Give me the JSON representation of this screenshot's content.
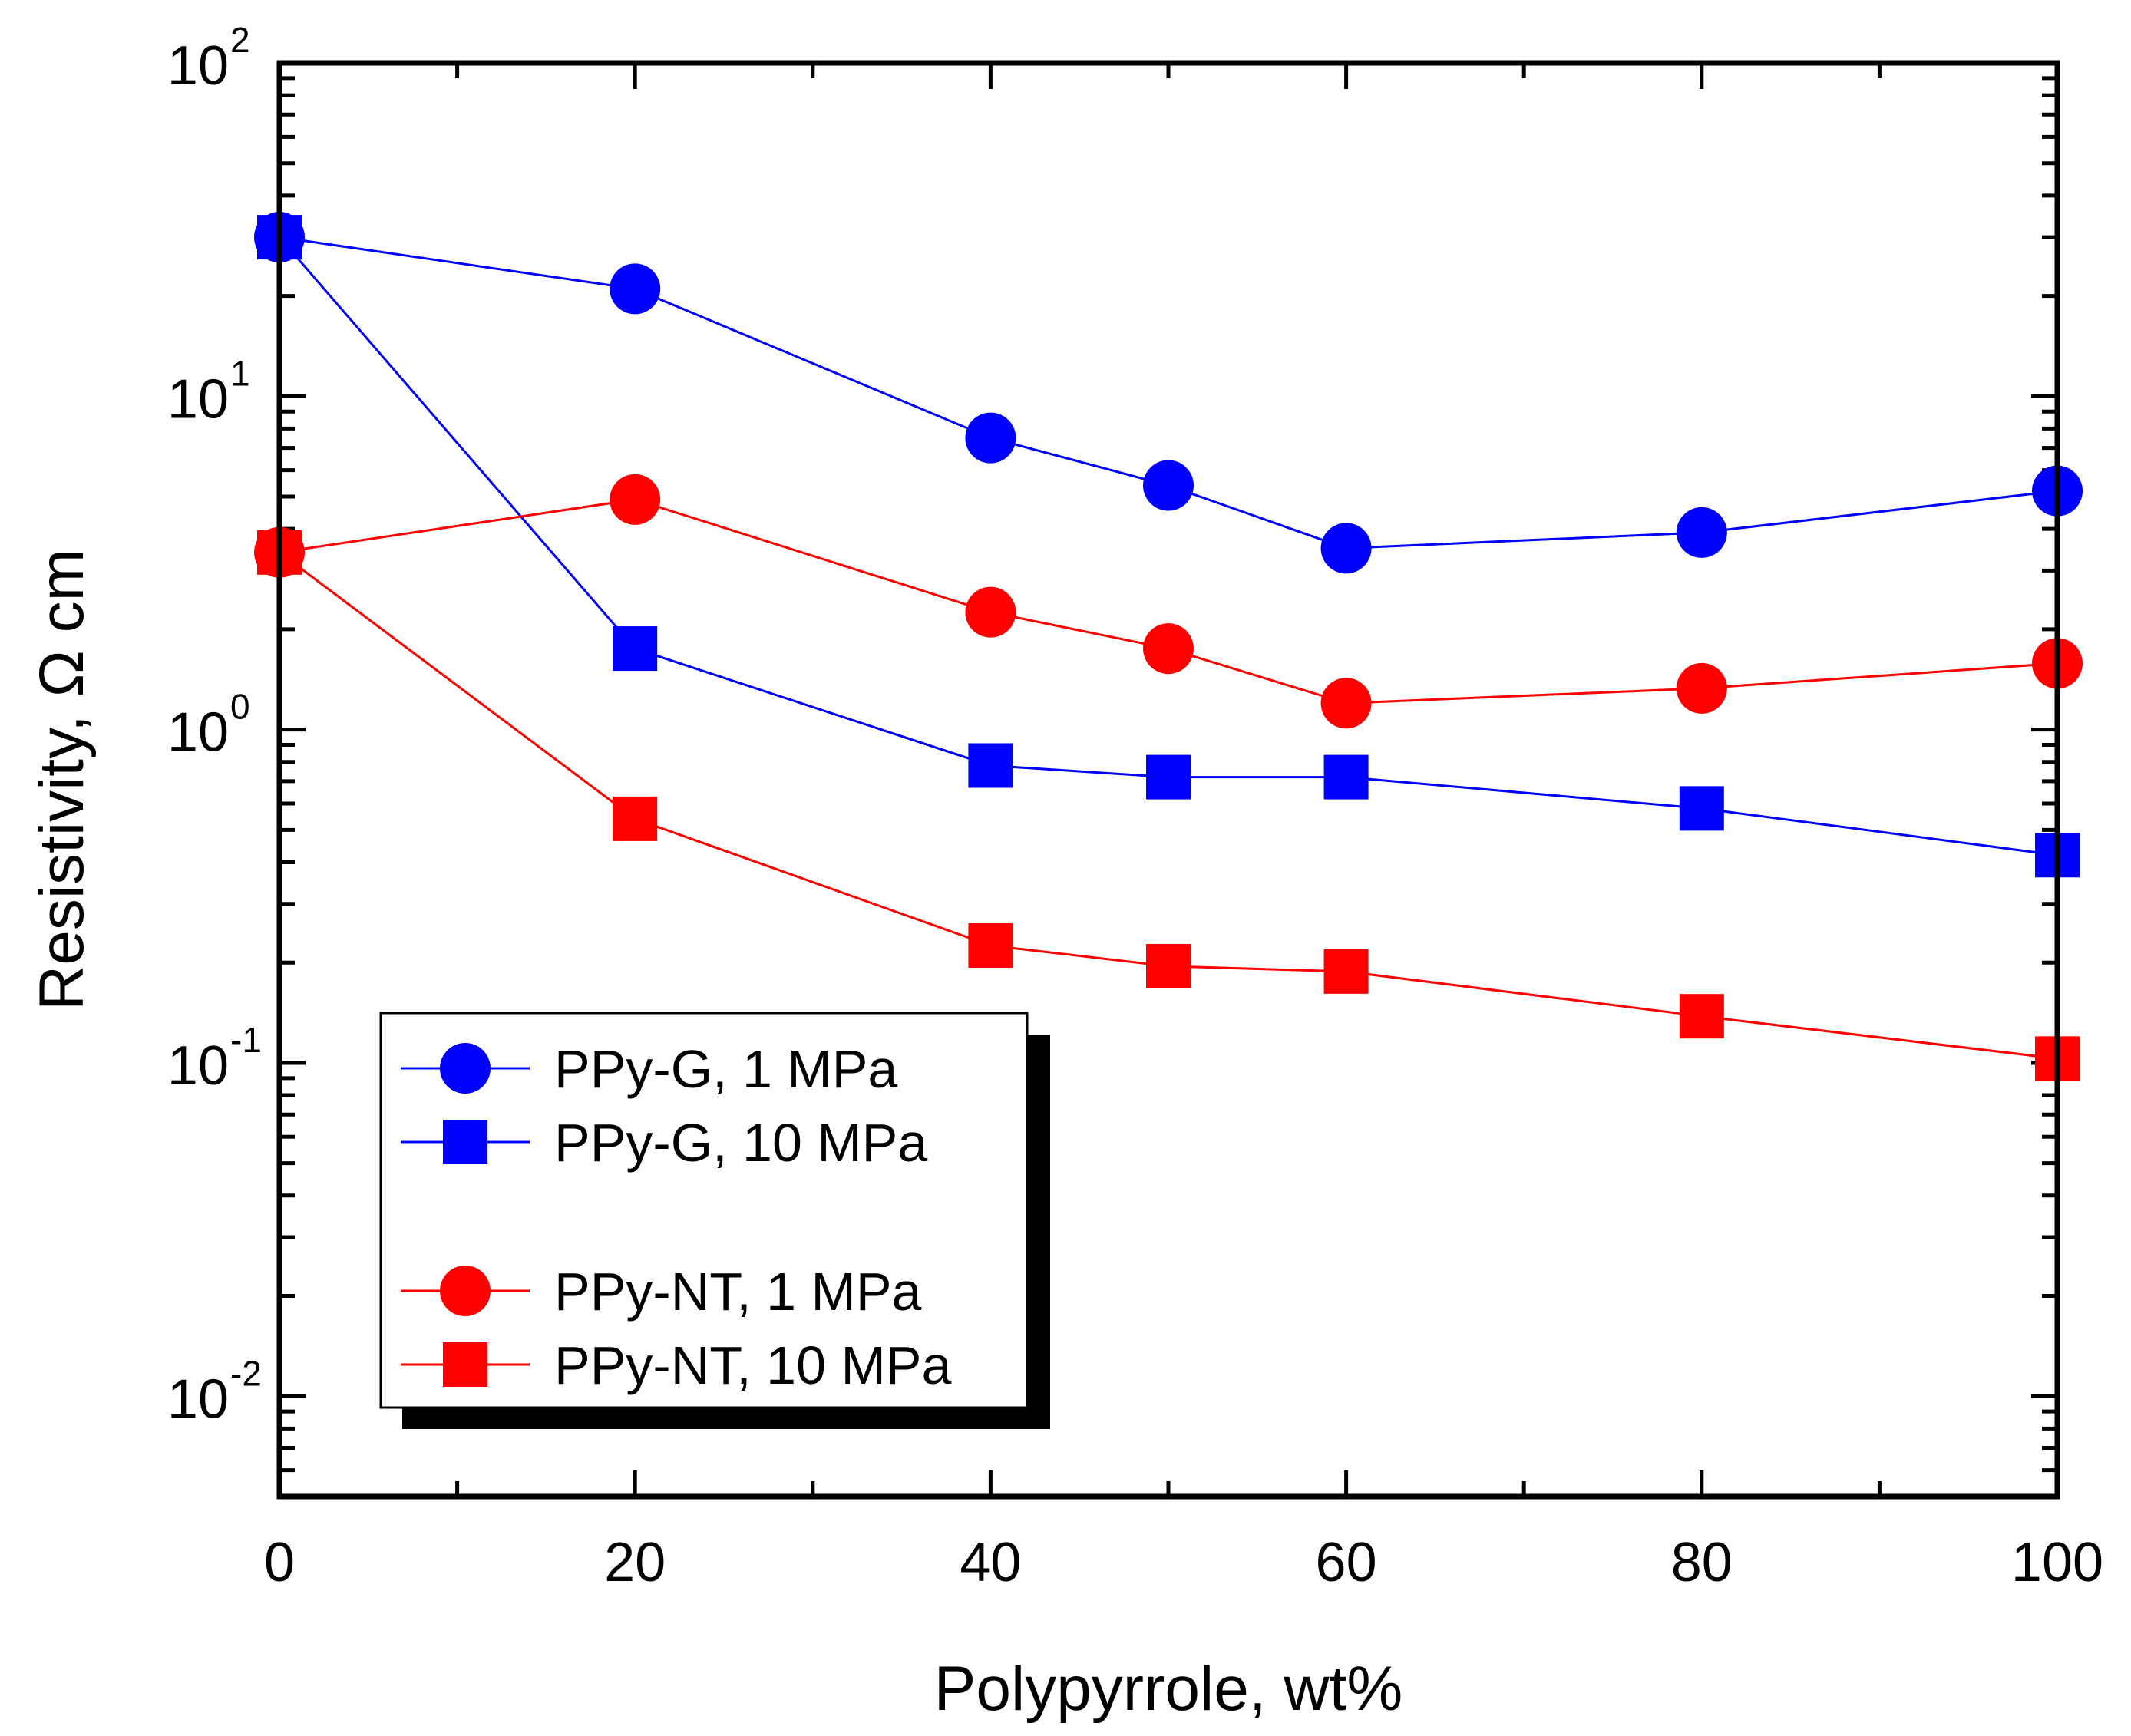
{
  "chart_data": {
    "type": "line",
    "xlabel": "Polypyrrole, wt%",
    "ylabel": "Resistivity, Ω cm",
    "xlim": [
      0,
      100
    ],
    "ylim": [
      0.005,
      100
    ],
    "yscale": "log",
    "xticks": [
      0,
      20,
      40,
      60,
      80,
      100
    ],
    "xtick_labels": [
      "0",
      "20",
      "40",
      "60",
      "80",
      "100"
    ],
    "yticks": [
      0.01,
      0.1,
      1,
      10,
      100
    ],
    "ytick_labels": [
      {
        "base": "10",
        "exp": "-2"
      },
      {
        "base": "10",
        "exp": "-1"
      },
      {
        "base": "10",
        "exp": "0"
      },
      {
        "base": "10",
        "exp": "1"
      },
      {
        "base": "10",
        "exp": "2"
      }
    ],
    "legend_position": "bottom-left",
    "series": [
      {
        "name": "PPy-G, 1 MPa",
        "color": "#0000ff",
        "marker": "circle",
        "x": [
          0,
          20,
          40,
          50,
          60,
          80,
          100
        ],
        "y": [
          30,
          21,
          7.5,
          5.4,
          3.5,
          3.9,
          5.2
        ]
      },
      {
        "name": "PPy-G, 10 MPa",
        "color": "#0000ff",
        "marker": "square",
        "x": [
          0,
          20,
          40,
          50,
          60,
          80,
          100
        ],
        "y": [
          30,
          1.75,
          0.78,
          0.72,
          0.72,
          0.58,
          0.42
        ]
      },
      {
        "name": "PPy-NT, 1 MPa",
        "color": "#ff0000",
        "marker": "circle",
        "x": [
          0,
          20,
          40,
          50,
          60,
          80,
          100
        ],
        "y": [
          3.4,
          4.9,
          2.25,
          1.75,
          1.2,
          1.33,
          1.58
        ]
      },
      {
        "name": "PPy-NT, 10 MPa",
        "color": "#ff0000",
        "marker": "square",
        "x": [
          0,
          20,
          40,
          50,
          60,
          80,
          100
        ],
        "y": [
          3.4,
          0.54,
          0.225,
          0.195,
          0.188,
          0.138,
          0.103
        ]
      }
    ]
  }
}
